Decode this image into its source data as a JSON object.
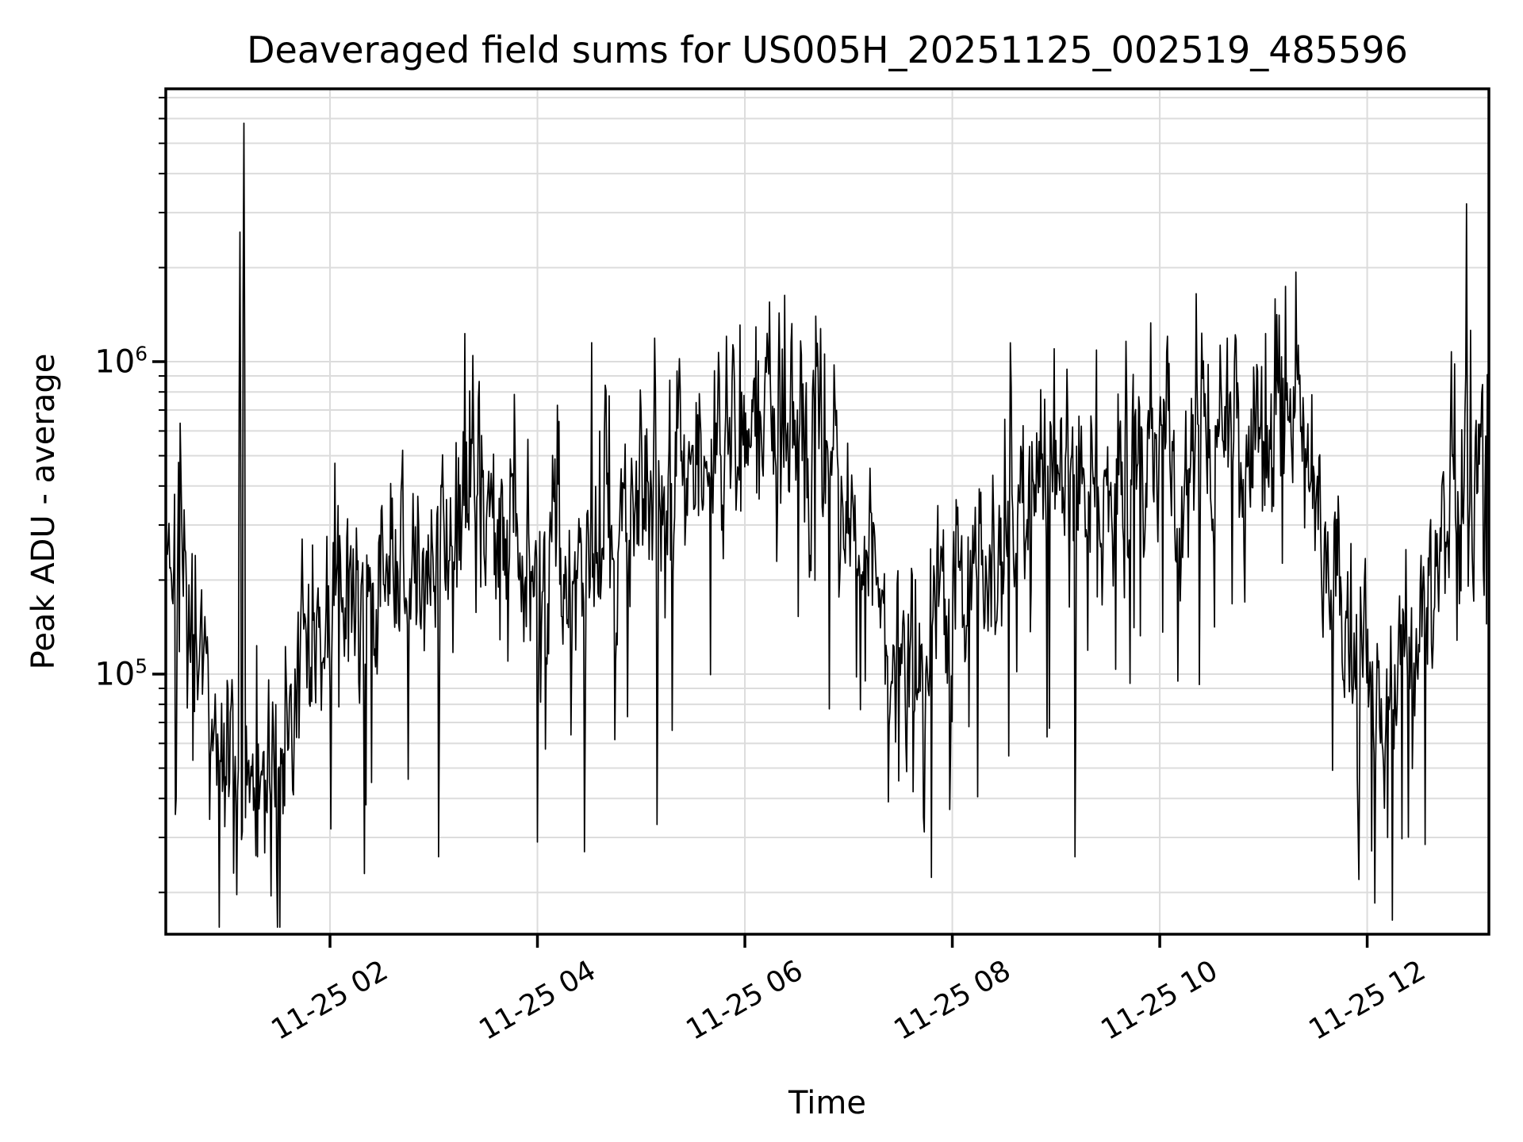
{
  "chart_data": {
    "type": "line",
    "title": "Deaveraged field sums for US005H_20251125_002519_485596",
    "xlabel": "Time",
    "ylabel": "Peak ADU - average",
    "yscale": "log",
    "grid": true,
    "legend": null,
    "line_color": "#000000",
    "background_color": "#ffffff",
    "grid_color": "#dcdcdc",
    "spine_color": "#000000",
    "x_tick_rotation_deg": 30,
    "x_unit": "time of day on 11-25",
    "x_range_hours": [
      0.4167,
      13.1733
    ],
    "ylim": [
      14700,
      7470000
    ],
    "x_ticks": [
      {
        "hours": 2,
        "label": "11-25 02"
      },
      {
        "hours": 4,
        "label": "11-25 04"
      },
      {
        "hours": 6,
        "label": "11-25 06"
      },
      {
        "hours": 8,
        "label": "11-25 08"
      },
      {
        "hours": 10,
        "label": "11-25 10"
      },
      {
        "hours": 12,
        "label": "11-25 12"
      }
    ],
    "y_ticks": [
      {
        "value": 100000,
        "base": "10",
        "exp": "5"
      },
      {
        "value": 1000000,
        "base": "10",
        "exp": "6"
      }
    ],
    "series_name": "Peak ADU - average",
    "envelope_log10": [
      [
        0.417,
        5.45
      ],
      [
        0.6,
        5.4
      ],
      [
        0.78,
        5.1
      ],
      [
        0.93,
        4.82
      ],
      [
        1.1,
        4.75
      ],
      [
        1.35,
        4.72
      ],
      [
        1.6,
        4.85
      ],
      [
        1.85,
        5.05
      ],
      [
        2.1,
        5.2
      ],
      [
        2.5,
        5.27
      ],
      [
        2.9,
        5.33
      ],
      [
        3.1,
        5.45
      ],
      [
        3.3,
        5.66
      ],
      [
        3.55,
        5.5
      ],
      [
        3.8,
        5.35
      ],
      [
        4.1,
        5.33
      ],
      [
        4.45,
        5.4
      ],
      [
        4.8,
        5.5
      ],
      [
        5.2,
        5.6
      ],
      [
        5.6,
        5.7
      ],
      [
        6.0,
        5.77
      ],
      [
        6.35,
        5.79
      ],
      [
        6.7,
        5.67
      ],
      [
        7.0,
        5.5
      ],
      [
        7.3,
        5.22
      ],
      [
        7.6,
        5.1
      ],
      [
        7.9,
        5.2
      ],
      [
        8.2,
        5.3
      ],
      [
        8.55,
        5.48
      ],
      [
        8.9,
        5.65
      ],
      [
        9.25,
        5.68
      ],
      [
        9.6,
        5.65
      ],
      [
        10.0,
        5.68
      ],
      [
        10.4,
        5.71
      ],
      [
        10.8,
        5.73
      ],
      [
        11.1,
        5.76
      ],
      [
        11.35,
        5.7
      ],
      [
        11.6,
        5.4
      ],
      [
        11.85,
        5.02
      ],
      [
        12.1,
        4.88
      ],
      [
        12.35,
        5.02
      ],
      [
        12.6,
        5.32
      ],
      [
        12.85,
        5.52
      ],
      [
        13.05,
        5.62
      ],
      [
        13.17,
        5.7
      ]
    ],
    "spikes": [
      [
        1.13,
        2600000
      ],
      [
        1.17,
        5800000
      ],
      [
        3.3,
        1230000
      ],
      [
        4.52,
        1150000
      ],
      [
        5.95,
        1310000
      ],
      [
        6.38,
        1630000
      ],
      [
        8.98,
        1100000
      ],
      [
        10.65,
        1190000
      ],
      [
        11.02,
        1230000
      ],
      [
        12.96,
        3200000
      ],
      [
        13.0,
        1260000
      ]
    ],
    "dips": [
      [
        0.52,
        40000
      ],
      [
        1.3,
        26000
      ],
      [
        1.43,
        19500
      ],
      [
        3.05,
        26000
      ],
      [
        4.0,
        29000
      ],
      [
        4.45,
        27000
      ],
      [
        5.15,
        33000
      ],
      [
        7.38,
        39000
      ],
      [
        7.62,
        42000
      ],
      [
        9.18,
        26000
      ],
      [
        11.92,
        22000
      ],
      [
        12.07,
        18500
      ],
      [
        12.2,
        30000
      ]
    ],
    "sampling": {
      "n_points": 1660,
      "noise_sigma_dex": 0.15,
      "noise_ar": 0.5,
      "down_tail_p": 0.055,
      "down_tail_max_dex": 0.75,
      "up_tail_p": 0.02,
      "up_tail_max_dex": 0.4
    }
  }
}
